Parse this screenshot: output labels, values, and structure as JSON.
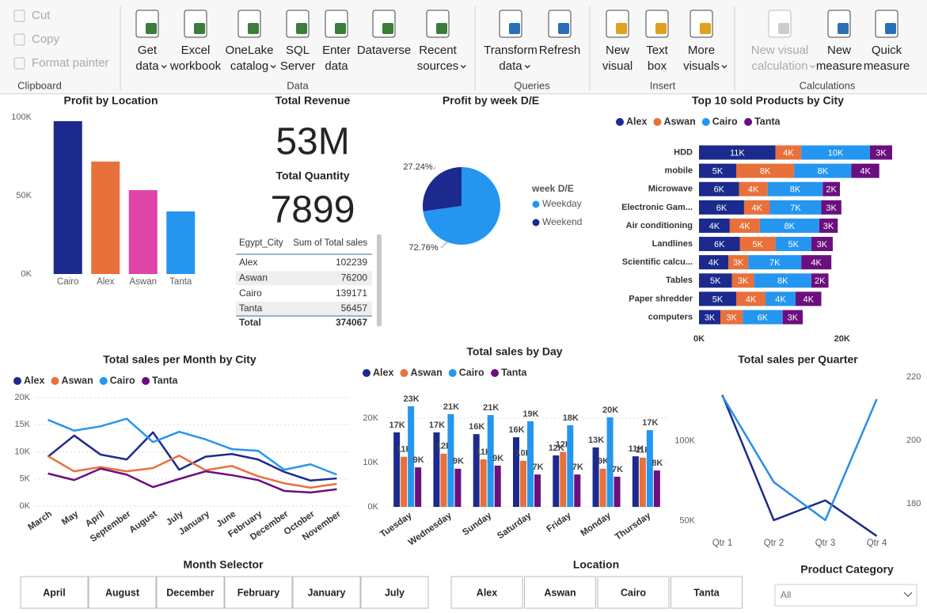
{
  "ribbon": {
    "groups": [
      {
        "name": "Clipboard",
        "buttons": [
          {
            "label": [
              "Cut"
            ],
            "disabled": true
          },
          {
            "label": [
              "Copy"
            ],
            "disabled": true
          },
          {
            "label": [
              "Format painter"
            ],
            "disabled": true
          }
        ]
      },
      {
        "name": "Data",
        "buttons": [
          {
            "label": [
              "Get",
              "data"
            ],
            "menu": true
          },
          {
            "label": [
              "Excel",
              "workbook"
            ]
          },
          {
            "label": [
              "OneLake",
              "catalog"
            ],
            "menu": true
          },
          {
            "label": [
              "SQL",
              "Server"
            ]
          },
          {
            "label": [
              "Enter",
              "data"
            ]
          },
          {
            "label": [
              "Dataverse"
            ]
          },
          {
            "label": [
              "Recent",
              "sources"
            ],
            "menu": true
          }
        ]
      },
      {
        "name": "Queries",
        "buttons": [
          {
            "label": [
              "Transform",
              "data"
            ],
            "menu": true
          },
          {
            "label": [
              "Refresh"
            ]
          }
        ]
      },
      {
        "name": "Insert",
        "buttons": [
          {
            "label": [
              "New",
              "visual"
            ]
          },
          {
            "label": [
              "Text",
              "box"
            ]
          },
          {
            "label": [
              "More",
              "visuals"
            ],
            "menu": true
          }
        ]
      },
      {
        "name": "Calculations",
        "buttons": [
          {
            "label": [
              "New visual",
              "calculation"
            ],
            "disabled": true,
            "menu": true
          },
          {
            "label": [
              "New",
              "measure"
            ]
          },
          {
            "label": [
              "Quick",
              "measure"
            ]
          }
        ]
      }
    ]
  },
  "kpis": [
    {
      "label": "Total Revenue",
      "value": "53M"
    },
    {
      "label": "Total Quantity",
      "value": 7899
    }
  ],
  "table": {
    "columns": [
      "Egypt_City",
      "Sum of Total sales"
    ],
    "rows": [
      [
        "Alex",
        102239
      ],
      [
        "Aswan",
        76200
      ],
      [
        "Cairo",
        139171
      ],
      [
        "Tanta",
        56457
      ]
    ],
    "total": [
      "Total",
      374067
    ]
  },
  "chart_data": [
    {
      "type": "bar",
      "title": "Profit by Location",
      "categories": [
        "Cairo",
        "Alex",
        "Aswan",
        "Tanta"
      ],
      "values": [
        97500,
        71700,
        53500,
        39900
      ],
      "colors": [
        "#1b2a8c",
        "#e8703a",
        "#e044a8",
        "#2596f0"
      ],
      "ylim": [
        0,
        100000
      ],
      "yticks": [
        {
          "value": 0,
          "label": "0K"
        },
        {
          "value": 50000,
          "label": "50K"
        },
        {
          "value": 100000,
          "label": "100K"
        }
      ],
      "grid": false
    },
    {
      "type": "pie",
      "title": "Profit by week D/E",
      "legend_title": "week D/E",
      "categories": [
        "Weekday",
        "Weekend"
      ],
      "values": [
        72.76,
        27.24
      ],
      "value_labels": [
        "72.76%",
        "27.24%"
      ],
      "colors": [
        "#2596f0",
        "#1b2a8c"
      ]
    },
    {
      "type": "hbar",
      "stacked": true,
      "title": "Top 10 sold Products by City",
      "categories": [
        "HDD",
        "mobile",
        "Microwave",
        "Electronic Gam...",
        "Air conditioning",
        "Landlines",
        "Scientific calcu...",
        "Tables",
        "Paper shredder",
        "computers"
      ],
      "series": [
        {
          "name": "Alex",
          "color": "#1b2a8c",
          "values": [
            10700,
            5200,
            5600,
            6300,
            4300,
            5700,
            4100,
            4600,
            5200,
            3000
          ],
          "value_labels": [
            "11K",
            "5K",
            "6K",
            "6K",
            "4K",
            "6K",
            "4K",
            "5K",
            "5K",
            "3K"
          ]
        },
        {
          "name": "Aswan",
          "color": "#e8703a",
          "values": [
            3600,
            8100,
            4000,
            3600,
            4200,
            5000,
            2800,
            3100,
            4100,
            3100
          ],
          "value_labels": [
            "4K",
            "8K",
            "4K",
            "4K",
            "4K",
            "5K",
            "3K",
            "3K",
            "4K",
            "3K"
          ]
        },
        {
          "name": "Cairo",
          "color": "#2596f0",
          "values": [
            9600,
            8000,
            7700,
            7200,
            8300,
            5000,
            7400,
            8000,
            4200,
            5600
          ],
          "value_labels": [
            "10K",
            "8K",
            "8K",
            "7K",
            "8K",
            "5K",
            "7K",
            "8K",
            "4K",
            "6K"
          ]
        },
        {
          "name": "Tanta",
          "color": "#6b0f7e",
          "values": [
            3100,
            3900,
            2400,
            2800,
            2600,
            3000,
            4200,
            2400,
            3600,
            2800
          ],
          "value_labels": [
            "3K",
            "4K",
            "2K",
            "3K",
            "3K",
            "3K",
            "4K",
            "2K",
            "4K",
            "3K"
          ]
        }
      ],
      "xlim": [
        0,
        28000
      ],
      "xticks": [
        {
          "value": 0,
          "label": "0K"
        },
        {
          "value": 20000,
          "label": "20K"
        }
      ]
    },
    {
      "type": "line",
      "title": "Total sales per Month by City",
      "categories": [
        "March",
        "May",
        "April",
        "September",
        "August",
        "July",
        "January",
        "June",
        "February",
        "December",
        "October",
        "November"
      ],
      "series": [
        {
          "name": "Alex",
          "color": "#1b2a8c",
          "values": [
            9100,
            13000,
            9500,
            8600,
            13600,
            6700,
            9100,
            9600,
            8600,
            6300,
            4700,
            5100
          ]
        },
        {
          "name": "Aswan",
          "color": "#e8703a",
          "values": [
            9200,
            6400,
            7200,
            6400,
            7000,
            9300,
            6600,
            7400,
            5500,
            4200,
            3400,
            4100
          ]
        },
        {
          "name": "Cairo",
          "color": "#2596f0",
          "values": [
            15900,
            13900,
            14700,
            16100,
            11800,
            13700,
            12300,
            10500,
            10200,
            6700,
            7700,
            5800
          ]
        },
        {
          "name": "Tanta",
          "color": "#6b0f7e",
          "values": [
            6000,
            4800,
            6900,
            5800,
            3500,
            5000,
            6400,
            5700,
            4800,
            2800,
            2500,
            3100
          ]
        }
      ],
      "ylim": [
        0,
        20000
      ],
      "yticks": [
        {
          "value": 0,
          "label": "0K"
        },
        {
          "value": 5000,
          "label": "5K"
        },
        {
          "value": 10000,
          "label": "10K"
        },
        {
          "value": 15000,
          "label": "15K"
        },
        {
          "value": 20000,
          "label": "20K"
        }
      ],
      "grid": true
    },
    {
      "type": "bar",
      "title": "Total sales by Day",
      "categories": [
        "Tuesday",
        "Wednesday",
        "Sunday",
        "Saturday",
        "Friday",
        "Monday",
        "Thursday"
      ],
      "series": [
        {
          "name": "Alex",
          "color": "#1b2a8c",
          "values": [
            16800,
            16800,
            16400,
            15700,
            11600,
            13400,
            11400
          ],
          "value_labels": [
            "17K",
            "17K",
            "16K",
            "16K",
            "12K",
            "13K",
            "11K"
          ]
        },
        {
          "name": "Aswan",
          "color": "#e8703a",
          "values": [
            11300,
            12000,
            10700,
            10400,
            12400,
            8600,
            11100
          ],
          "value_labels": [
            "11K",
            "12K",
            "11K",
            "10K",
            "12K",
            "9K",
            "11K"
          ]
        },
        {
          "name": "Cairo",
          "color": "#2596f0",
          "values": [
            22700,
            20900,
            20700,
            19300,
            18400,
            20200,
            17300
          ],
          "value_labels": [
            "23K",
            "21K",
            "21K",
            "19K",
            "18K",
            "20K",
            "17K"
          ]
        },
        {
          "name": "Tanta",
          "color": "#6b0f7e",
          "values": [
            8900,
            8600,
            9300,
            7300,
            7300,
            6800,
            8200
          ],
          "value_labels": [
            "9K",
            "9K",
            "9K",
            "7K",
            "7K",
            "7K",
            "8K"
          ]
        }
      ],
      "ylim": [
        0,
        25000
      ],
      "yticks": [
        {
          "value": 0,
          "label": "0K"
        },
        {
          "value": 10000,
          "label": "10K"
        },
        {
          "value": 20000,
          "label": "20K"
        }
      ],
      "grid": true
    },
    {
      "type": "line",
      "title": "Total sales per Quarter",
      "categories": [
        "Qtr 1",
        "Qtr 2",
        "Qtr 3",
        "Qtr 4"
      ],
      "series": [
        {
          "color": "#1b2a8c",
          "values": [
            128700,
            50500,
            62900,
            40600
          ]
        },
        {
          "color": "#2a8ee8",
          "values": [
            214,
            186.8,
            174.8,
            213
          ],
          "axis": "y2"
        }
      ],
      "ylim": [
        40000,
        140000
      ],
      "yticks": [
        {
          "value": 50000,
          "label": "50K"
        },
        {
          "value": 100000,
          "label": "100K"
        }
      ],
      "y2lim": [
        169.5,
        220
      ],
      "y2ticks": [
        180,
        200,
        220
      ],
      "grid": false
    }
  ],
  "slicers": [
    {
      "title": "Month Selector",
      "items": [
        "April",
        "August",
        "December",
        "February",
        "January",
        "July"
      ]
    },
    {
      "title": "Location",
      "items": [
        "Alex",
        "Aswan",
        "Cairo",
        "Tanta"
      ]
    },
    {
      "title": "Product Category",
      "selected": "All"
    }
  ]
}
